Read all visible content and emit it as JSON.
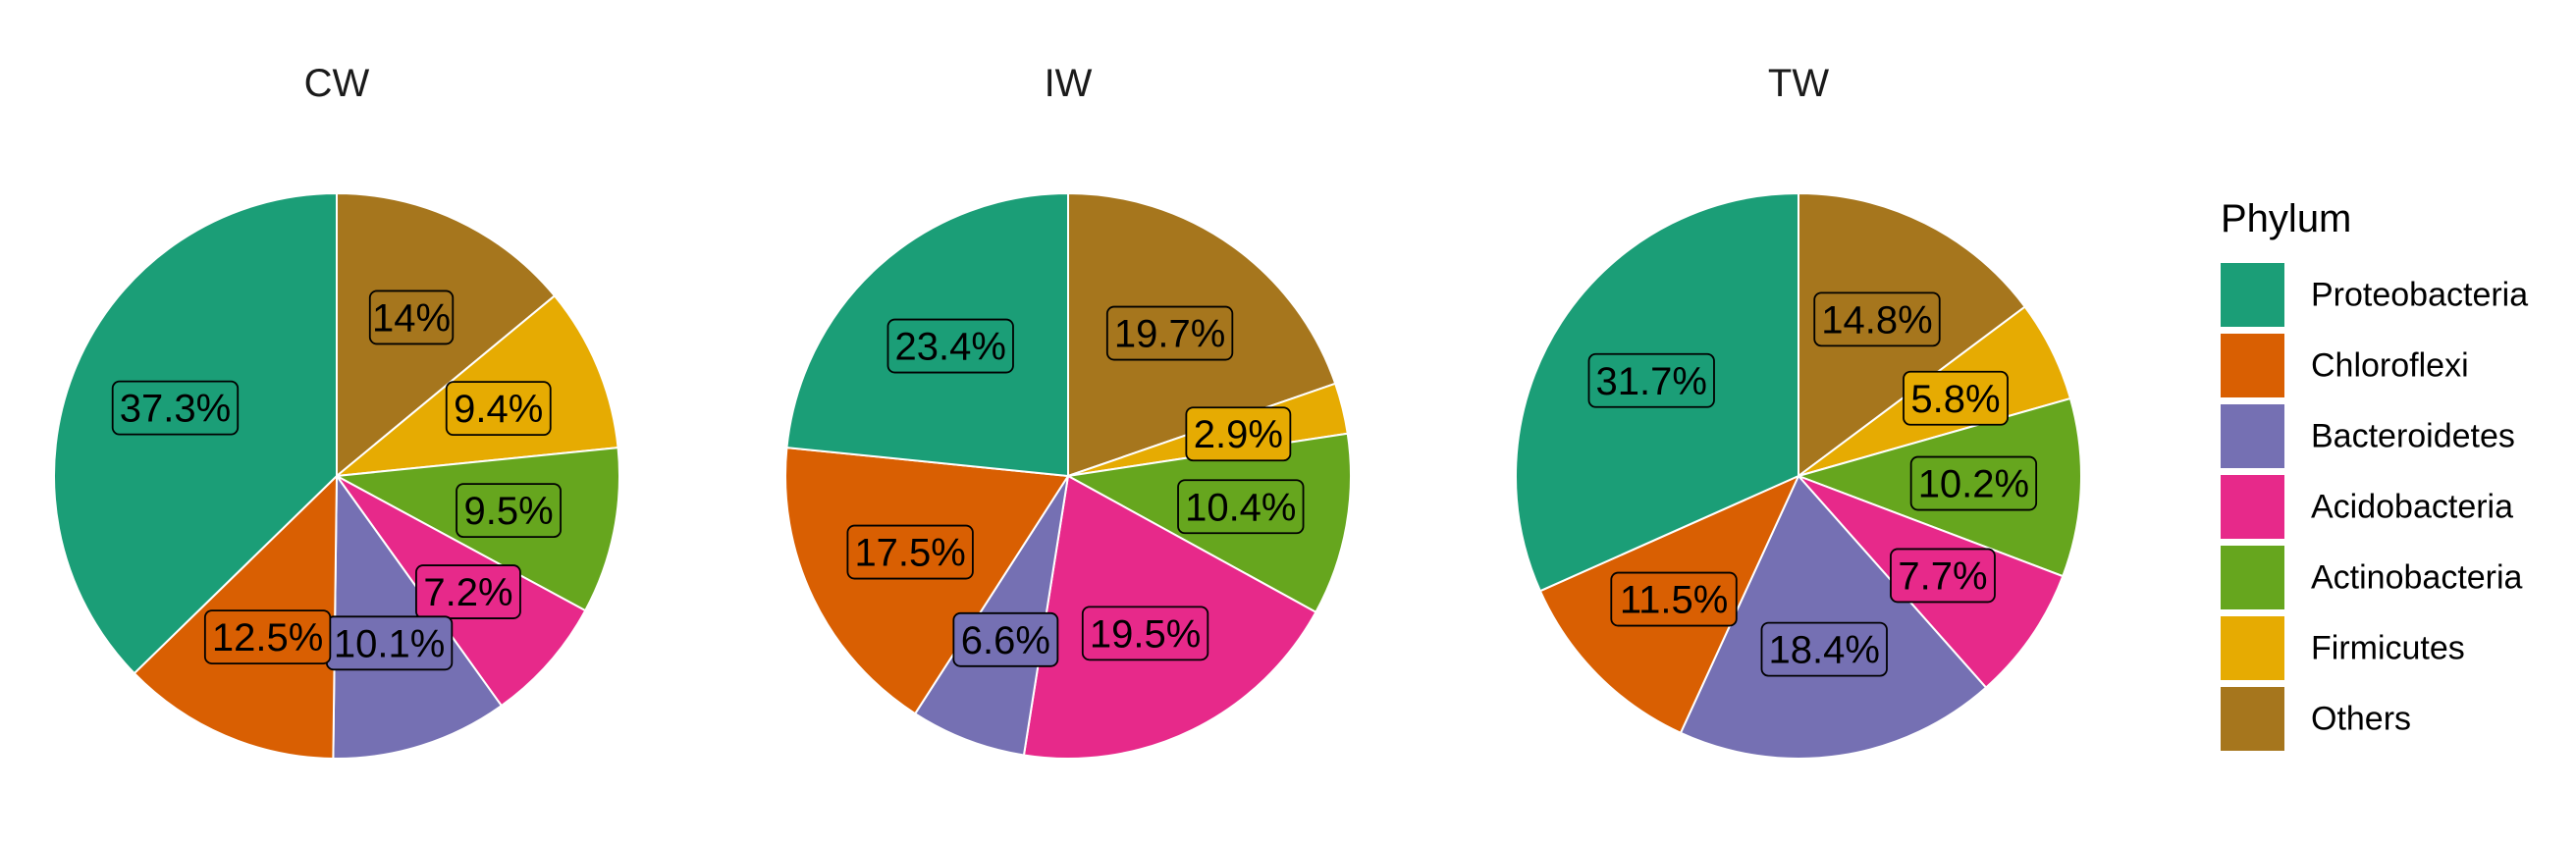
{
  "chart_data": {
    "type": "pie",
    "legend": {
      "title": "Phylum",
      "placement": "right",
      "entries": [
        {
          "name": "Proteobacteria",
          "color": "#1B9E77"
        },
        {
          "name": "Chloroflexi",
          "color": "#D95F02"
        },
        {
          "name": "Bacteroidetes",
          "color": "#7570B3"
        },
        {
          "name": "Acidobacteria",
          "color": "#E7298A"
        },
        {
          "name": "Actinobacteria",
          "color": "#66A61E"
        },
        {
          "name": "Firmicutes",
          "color": "#E6AB02"
        },
        {
          "name": "Others",
          "color": "#A6761D"
        }
      ]
    },
    "pies": [
      {
        "title": "CW",
        "slices": [
          {
            "category": "Others",
            "value": 14.0,
            "label": "14%"
          },
          {
            "category": "Firmicutes",
            "value": 9.4,
            "label": "9.4%"
          },
          {
            "category": "Actinobacteria",
            "value": 9.5,
            "label": "9.5%"
          },
          {
            "category": "Acidobacteria",
            "value": 7.2,
            "label": "7.2%"
          },
          {
            "category": "Bacteroidetes",
            "value": 10.1,
            "label": "10.1%"
          },
          {
            "category": "Chloroflexi",
            "value": 12.5,
            "label": "12.5%"
          },
          {
            "category": "Proteobacteria",
            "value": 37.3,
            "label": "37.3%"
          }
        ]
      },
      {
        "title": "IW",
        "slices": [
          {
            "category": "Others",
            "value": 19.7,
            "label": "19.7%"
          },
          {
            "category": "Firmicutes",
            "value": 2.9,
            "label": "2.9%"
          },
          {
            "category": "Actinobacteria",
            "value": 10.4,
            "label": "10.4%"
          },
          {
            "category": "Acidobacteria",
            "value": 19.5,
            "label": "19.5%"
          },
          {
            "category": "Bacteroidetes",
            "value": 6.6,
            "label": "6.6%"
          },
          {
            "category": "Chloroflexi",
            "value": 17.5,
            "label": "17.5%"
          },
          {
            "category": "Proteobacteria",
            "value": 23.4,
            "label": "23.4%"
          }
        ]
      },
      {
        "title": "TW",
        "slices": [
          {
            "category": "Others",
            "value": 14.8,
            "label": "14.8%"
          },
          {
            "category": "Firmicutes",
            "value": 5.8,
            "label": "5.8%"
          },
          {
            "category": "Actinobacteria",
            "value": 10.2,
            "label": "10.2%"
          },
          {
            "category": "Acidobacteria",
            "value": 7.7,
            "label": "7.7%"
          },
          {
            "category": "Bacteroidetes",
            "value": 18.4,
            "label": "18.4%"
          },
          {
            "category": "Chloroflexi",
            "value": 11.5,
            "label": "11.5%"
          },
          {
            "category": "Proteobacteria",
            "value": 31.7,
            "label": "31.7%"
          }
        ]
      }
    ]
  }
}
